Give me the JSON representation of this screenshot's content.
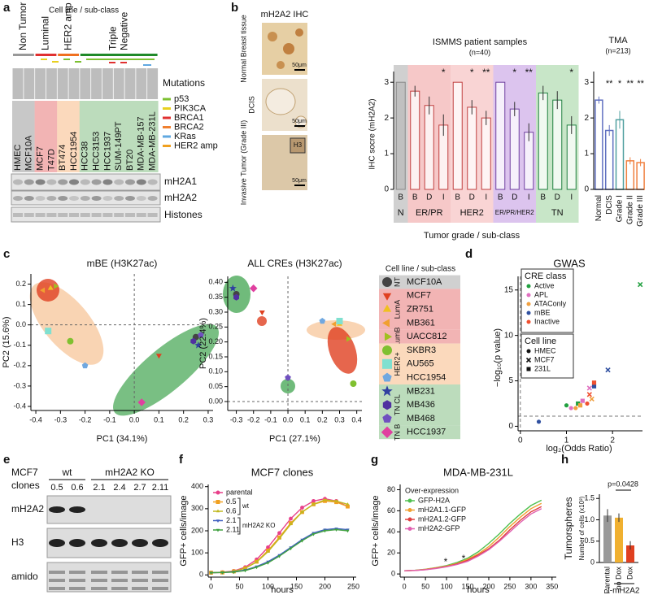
{
  "panel_labels": [
    "a",
    "b",
    "c",
    "d",
    "e",
    "f",
    "g",
    "h"
  ],
  "panel_a": {
    "header": "Cell line / sub-class",
    "groups": [
      {
        "lines": [
          "Non Tumor"
        ],
        "color": "#999999",
        "background": "#c8c8c8",
        "cell_lines": [
          "HMEC",
          "MCF10A"
        ]
      },
      {
        "lines": [
          "Luminal"
        ],
        "color": "#e03030",
        "background": "#f2b4b4",
        "cell_lines": [
          "MCF7",
          "T47D"
        ]
      },
      {
        "lines": [
          "HER2 amp"
        ],
        "color": "#f07020",
        "background": "#fbd9bc",
        "cell_lines": [
          "BT474",
          "HCC1954"
        ]
      },
      {
        "lines": [
          "Triple",
          "Negative"
        ],
        "color": "#208a2a",
        "background": "#bcdcbc",
        "cell_lines": [
          "HCC38",
          "HCC3153",
          "HCC1937",
          "SUM-149PT",
          "BT20",
          "MDA-MB-157",
          "MDA-MB-231L"
        ]
      }
    ],
    "mutations_title": "Mutations",
    "mutations": [
      {
        "name": "p53",
        "color": "#7cc030"
      },
      {
        "name": "PIK3CA",
        "color": "#e8d020"
      },
      {
        "name": "BRCA1",
        "color": "#e03030"
      },
      {
        "name": "BRCA2",
        "color": "#f08030"
      },
      {
        "name": "KRas",
        "color": "#60a8e0"
      },
      {
        "name": "HER2 amp",
        "color": "#f0a020"
      }
    ],
    "blots": [
      "mH2A1",
      "mH2A2",
      "Histones"
    ]
  },
  "panel_b": {
    "title": "mH2A2 IHC",
    "images": [
      "Normal Breast tissue",
      "DCIS",
      "Invasive Tumor (Grade III)"
    ],
    "scale_bar": "50μm",
    "inset": "H3"
  },
  "panel_c_legend": {
    "title": "Cell line / sub-class",
    "groups": [
      {
        "name": "NT",
        "background": "#d0d0d0",
        "members": [
          {
            "name": "MCF10A",
            "marker": "circle",
            "color": "#444444"
          }
        ]
      },
      {
        "name": "LumA",
        "background": "#f2b4b4",
        "members": [
          {
            "name": "MCF7",
            "marker": "triangle-down",
            "color": "#e04020"
          },
          {
            "name": "ZR751",
            "marker": "triangle-up",
            "color": "#f0c020"
          },
          {
            "name": "MB361",
            "marker": "triangle-left",
            "color": "#f0a030"
          }
        ]
      },
      {
        "name": "LumB",
        "background": "#f2b4b4",
        "members": [
          {
            "name": "UACC812",
            "marker": "triangle-right",
            "color": "#a0c020"
          }
        ]
      },
      {
        "name": "HER2+",
        "background": "#fbd9bc",
        "members": [
          {
            "name": "SKBR3",
            "marker": "circle",
            "color": "#80c030"
          },
          {
            "name": "AU565",
            "marker": "square",
            "color": "#80e0d0"
          },
          {
            "name": "HCC1954",
            "marker": "pentagon",
            "color": "#70a8e0"
          }
        ]
      },
      {
        "name": "TN CL",
        "background": "#bcdcbc",
        "members": [
          {
            "name": "MB231",
            "marker": "star",
            "color": "#3040a0"
          },
          {
            "name": "MB436",
            "marker": "hexagon",
            "color": "#5030a0"
          },
          {
            "name": "MB468",
            "marker": "pentagon",
            "color": "#7050c0"
          }
        ]
      },
      {
        "name": "TN B",
        "background": "#bcdcbc",
        "members": [
          {
            "name": "HCC1937",
            "marker": "diamond",
            "color": "#e040a0"
          }
        ]
      }
    ]
  },
  "panel_e": {
    "cell_line": "MCF7",
    "clones_label": "clones",
    "groups": [
      {
        "name": "wt",
        "clones": [
          "0.5",
          "0.6"
        ]
      },
      {
        "name": "mH2A2 KO",
        "clones": [
          "2.1",
          "2.4",
          "2.7",
          "2.11"
        ]
      }
    ],
    "blots": [
      "mH2A2",
      "H3",
      "amido"
    ]
  },
  "chart_data": [
    {
      "type": "grouped-bar",
      "title": "ISMMS patient samples",
      "subtitle": "(n=40)",
      "y_label": "IHC socre (mH2A2)",
      "x_label": "Tumor grade / sub-class",
      "ylim": [
        0,
        3.3
      ],
      "yticks": [
        0,
        1,
        2,
        3
      ],
      "groups": [
        {
          "name": "N",
          "color": "#888888",
          "background": "#d0d0d0",
          "categories": [
            "B"
          ],
          "values": [
            3
          ],
          "errors": [
            0
          ],
          "stars": [
            null
          ]
        },
        {
          "name": "ER/PR",
          "color": "#c04040",
          "background": "#f6c8c8",
          "categories": [
            "B",
            "D",
            "I"
          ],
          "values": [
            2.75,
            2.35,
            1.8
          ],
          "errors": [
            0.15,
            0.25,
            0.3
          ],
          "stars": [
            null,
            null,
            "*"
          ]
        },
        {
          "name": "HER2",
          "color": "#c04040",
          "background": "#f9d4d4",
          "categories": [
            "B",
            "D",
            "I"
          ],
          "values": [
            3,
            2.3,
            2.0
          ],
          "errors": [
            0,
            0.2,
            0.2
          ],
          "stars": [
            null,
            "*",
            "**"
          ]
        },
        {
          "name": "ER/PR/HER2",
          "color": "#7040a0",
          "background": "#dcc4ee",
          "categories": [
            "B",
            "D",
            "I"
          ],
          "values": [
            3,
            2.25,
            1.6
          ],
          "errors": [
            0,
            0.2,
            0.25
          ],
          "stars": [
            null,
            "*",
            "**"
          ]
        },
        {
          "name": "TN",
          "color": "#208040",
          "background": "#c8e6c8",
          "categories": [
            "B",
            "D",
            "I"
          ],
          "values": [
            2.7,
            2.5,
            1.8
          ],
          "errors": [
            0.2,
            0.25,
            0.25
          ],
          "stars": [
            null,
            null,
            "*"
          ]
        }
      ]
    },
    {
      "type": "bar",
      "title": "TMA",
      "subtitle": "(n=213)",
      "ylim": [
        0,
        3.3
      ],
      "yticks": [
        0,
        1,
        2,
        3
      ],
      "categories": [
        "Normal",
        "DCIS",
        "Grade I",
        "Grade II",
        "Grade III"
      ],
      "values": [
        2.5,
        1.65,
        1.95,
        0.8,
        0.75
      ],
      "errors": [
        0.1,
        0.15,
        0.25,
        0.1,
        0.1
      ],
      "stars": [
        null,
        "**",
        "*",
        "**",
        "**"
      ],
      "colors": [
        "#6070c0",
        "#6070c0",
        "#50a0a0",
        "#f08040",
        "#f08040"
      ]
    },
    {
      "type": "scatter",
      "title": "mBE (H3K27ac)",
      "x_label": "PC1 (34.1%)",
      "y_label": "PC2 (15.6%)",
      "xlim": [
        -0.42,
        0.32
      ],
      "ylim": [
        -0.42,
        0.25
      ],
      "xticks": [
        -0.4,
        -0.3,
        -0.2,
        -0.1,
        {
          "value": 0,
          "label": "0.0"
        },
        0.1,
        0.2,
        0.3
      ],
      "yticks": [
        -0.4,
        -0.3,
        -0.2,
        -0.1,
        {
          "value": 0,
          "label": "0.0"
        },
        0.1,
        0.2
      ],
      "x": [
        0.25,
        0.1,
        -0.34,
        -0.37,
        -0.32,
        -0.26,
        -0.35,
        -0.2,
        0.26,
        0.24,
        0.27,
        0.03
      ],
      "y": [
        -0.06,
        -0.15,
        0.18,
        0.17,
        0.19,
        -0.08,
        -0.03,
        -0.2,
        -0.1,
        -0.08,
        -0.05,
        -0.38
      ]
    },
    {
      "type": "scatter",
      "title": "ALL CREs (H3K27ac)",
      "x_label": "PC1 (27.1%)",
      "y_label": "PC2 (22.4%)",
      "xlim": [
        -0.35,
        0.43
      ],
      "ylim": [
        -0.03,
        0.42
      ],
      "xticks": [
        -0.3,
        -0.2,
        -0.1,
        {
          "value": 0,
          "label": "0.0"
        },
        0.1,
        0.2,
        0.3,
        0.4
      ],
      "yticks": [
        {
          "value": 0,
          "label": "0.00"
        },
        0.05,
        {
          "value": 0.1,
          "label": "0.10"
        },
        0.15,
        {
          "value": 0.2,
          "label": "0.20"
        },
        0.25,
        {
          "value": 0.3,
          "label": "0.30"
        },
        0.35,
        {
          "value": 0.4,
          "label": "0.40"
        }
      ],
      "x": [
        -0.3,
        -0.15,
        0.3,
        0.27,
        0.35,
        0.38,
        0.3,
        0.2,
        -0.32,
        -0.3,
        0,
        -0.2
      ],
      "y": [
        0.36,
        0.3,
        0.26,
        0.26,
        0.21,
        0.06,
        0.27,
        0.27,
        0.38,
        0.35,
        0.08,
        0.38
      ]
    },
    {
      "type": "scatter",
      "title": "GWAS",
      "x_label": "log₂(Odds Ratio)",
      "y_label": "−log₁₀(p value)",
      "xlim": [
        -0.05,
        2.65
      ],
      "ylim": [
        -0.5,
        16.5
      ],
      "xticks": [
        0,
        1,
        2
      ],
      "yticks": [
        0,
        5,
        10,
        15
      ],
      "legend_title": "CRE class",
      "marker_title": "Cell line",
      "cell_lines": [
        {
          "name": "HMEC",
          "marker": "circle"
        },
        {
          "name": "MCF7",
          "marker": "cross"
        },
        {
          "name": "231L",
          "marker": "square"
        }
      ],
      "series": [
        {
          "name": "Active",
          "color": "#22a040",
          "x": [
            1.0,
            2.6,
            1.25
          ],
          "y": [
            2.3,
            15.6,
            2.5
          ],
          "cell_line": [
            "HMEC",
            "MCF7",
            "231L"
          ]
        },
        {
          "name": "APL",
          "color": "#e070c0",
          "x": [
            1.1,
            1.5,
            1.35
          ],
          "y": [
            2.0,
            4.2,
            2.8
          ],
          "cell_line": [
            "HMEC",
            "MCF7",
            "231L"
          ]
        },
        {
          "name": "ATAConly",
          "color": "#f0a040",
          "x": [
            1.2,
            1.55,
            1.3
          ],
          "y": [
            2.0,
            3.0,
            2.3
          ],
          "cell_line": [
            "HMEC",
            "MCF7",
            "231L"
          ]
        },
        {
          "name": "mBE",
          "color": "#3050a0",
          "x": [
            0.4,
            1.9,
            1.6
          ],
          "y": [
            0.5,
            6.2,
            4.4
          ],
          "cell_line": [
            "HMEC",
            "MCF7",
            "231L"
          ]
        },
        {
          "name": "Inactive",
          "color": "#f05030",
          "x": [
            1.45,
            1.5,
            1.6
          ],
          "y": [
            2.5,
            3.5,
            4.8
          ],
          "cell_line": [
            "HMEC",
            "MCF7",
            "231L"
          ]
        }
      ]
    },
    {
      "type": "line",
      "title": "MCF7 clones",
      "x_label": "hours",
      "y_label": "GFP+ cells/image",
      "xlim": [
        -5,
        255
      ],
      "ylim": [
        -10,
        410
      ],
      "xticks": [
        0,
        50,
        100,
        150,
        200,
        250
      ],
      "yticks": [
        0,
        100,
        200,
        300,
        400
      ],
      "brackets": [
        "wt",
        "mH2A2 KO"
      ],
      "x": [
        0,
        20,
        40,
        60,
        80,
        100,
        120,
        140,
        160,
        180,
        200,
        220,
        240
      ],
      "series": [
        {
          "name": "parental",
          "color": "#e8408a",
          "marker": "circle",
          "values": [
            10,
            12,
            18,
            35,
            70,
            125,
            190,
            255,
            305,
            335,
            345,
            335,
            310
          ]
        },
        {
          "name": "0.5",
          "color": "#f0a020",
          "marker": "square",
          "values": [
            10,
            11,
            16,
            30,
            60,
            110,
            170,
            235,
            285,
            320,
            335,
            330,
            310
          ]
        },
        {
          "name": "0.6",
          "color": "#c0b820",
          "marker": "triangle-up",
          "values": [
            10,
            11,
            16,
            30,
            58,
            105,
            165,
            230,
            285,
            320,
            340,
            335,
            320
          ]
        },
        {
          "name": "2.1",
          "color": "#4060c0",
          "marker": "triangle-down",
          "values": [
            10,
            11,
            14,
            22,
            38,
            60,
            90,
            125,
            160,
            190,
            205,
            210,
            205
          ]
        },
        {
          "name": "2.11",
          "color": "#40a040",
          "marker": "triangle-down",
          "values": [
            10,
            11,
            13,
            20,
            35,
            55,
            85,
            120,
            155,
            185,
            200,
            205,
            200
          ]
        }
      ]
    },
    {
      "type": "line",
      "title": "MDA-MB-231L",
      "legend_title": "Over-expression",
      "x_label": "hours",
      "y_label": "GFP+ cells/image",
      "xlim": [
        -10,
        360
      ],
      "ylim": [
        -3,
        85
      ],
      "xticks": [
        0,
        50,
        100,
        150,
        200,
        250,
        300,
        350
      ],
      "yticks": [
        0,
        20,
        40,
        60,
        80
      ],
      "annotations": [
        "*",
        "*"
      ],
      "x": [
        0,
        25,
        50,
        75,
        100,
        125,
        150,
        175,
        200,
        225,
        250,
        275,
        300,
        325
      ],
      "series": [
        {
          "name": "GFP-H2A",
          "color": "#50c050",
          "values": [
            3,
            3.5,
            4.5,
            6,
            8,
            11,
            15,
            21,
            29,
            38,
            48,
            57,
            65,
            70
          ]
        },
        {
          "name": "mH2A1.1-GFP",
          "color": "#f0a030",
          "values": [
            3,
            3.4,
            4.3,
            5.8,
            7.5,
            10,
            14,
            19,
            26,
            35,
            45,
            54,
            62,
            67
          ]
        },
        {
          "name": "mH2A1.2-GFP",
          "color": "#e04040",
          "values": [
            3,
            3.3,
            4.1,
            5.4,
            7,
            9.5,
            13,
            18,
            24,
            32,
            42,
            51,
            59,
            64
          ]
        },
        {
          "name": "mH2A2-GFP",
          "color": "#e060b0",
          "values": [
            3,
            3.3,
            4,
            5.2,
            6.8,
            9,
            12,
            17,
            23,
            31,
            40,
            49,
            57,
            62
          ]
        }
      ]
    },
    {
      "type": "bar",
      "title": "Tumorspheres",
      "y_label": "Number of cells (x10³)",
      "ylim": [
        0,
        1.6
      ],
      "yticks": [
        0,
        0.5,
        {
          "value": 1,
          "label": "1.0"
        },
        1.5
      ],
      "categories": [
        "Parental",
        "no Dox",
        "Dox"
      ],
      "values": [
        1.1,
        1.05,
        0.4
      ],
      "errors": [
        0.15,
        0.1,
        0.1
      ],
      "colors": [
        "#999999",
        "#f0b030",
        "#e04020"
      ],
      "group_label": "i-mH2A2",
      "annotation": "p=0.0428"
    }
  ]
}
